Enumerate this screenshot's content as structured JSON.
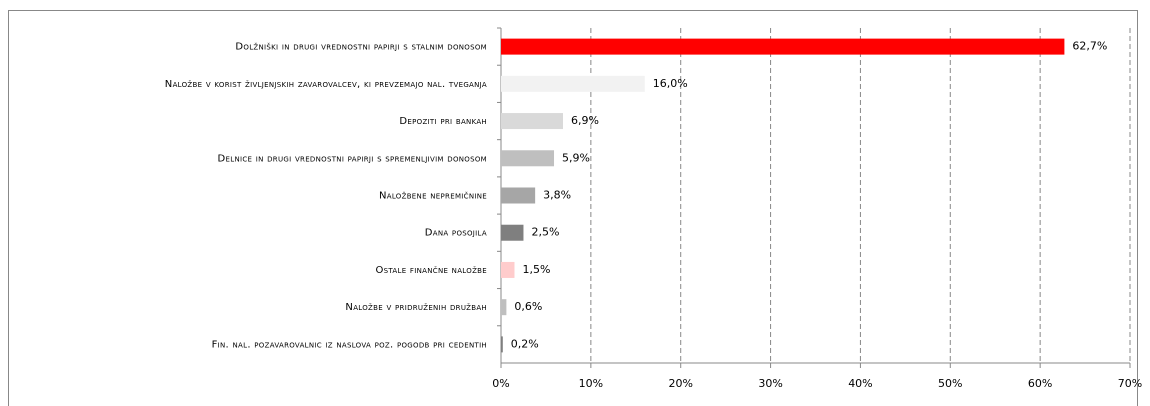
{
  "chart_data": {
    "type": "bar",
    "orientation": "horizontal",
    "categories": [
      "Dolžniški in drugi vrednostni papirji s stalnim donosom",
      "Naložbe v korist življenjskih zavarovalcev, ki prevzemajo nal. tveganja",
      "Depoziti pri bankah",
      "Delnice in drugi vrednostni papirji s spremenljivim donosom",
      "Naložbene nepremičnine",
      "Dana posojila",
      "Ostale finančne naložbe",
      "Naložbe v pridruženih družbah",
      "Fin. nal. pozavarovalnic iz naslova poz. pogodb pri cedentih"
    ],
    "values": [
      62.7,
      16.0,
      6.9,
      5.9,
      3.8,
      2.5,
      1.5,
      0.6,
      0.2
    ],
    "value_labels": [
      "62,7%",
      "16,0%",
      "6,9%",
      "5,9%",
      "3,8%",
      "2,5%",
      "1,5%",
      "0,6%",
      "0,2%"
    ],
    "colors": [
      "#ff0000",
      "#f2f2f2",
      "#d9d9d9",
      "#bfbfbf",
      "#a6a6a6",
      "#7f7f7f",
      "#ffcccc",
      "#bfbfbf",
      "#7f7f7f"
    ],
    "xlim": [
      0,
      70
    ],
    "xticks": [
      {
        "value": 0,
        "label": "0%"
      },
      {
        "value": 10,
        "label": "10%"
      },
      {
        "value": 20,
        "label": "20%"
      },
      {
        "value": 30,
        "label": "30%"
      },
      {
        "value": 40,
        "label": "40%"
      },
      {
        "value": 50,
        "label": "50%"
      },
      {
        "value": 60,
        "label": "60%"
      },
      {
        "value": 70,
        "label": "70%"
      }
    ],
    "grid": true
  }
}
